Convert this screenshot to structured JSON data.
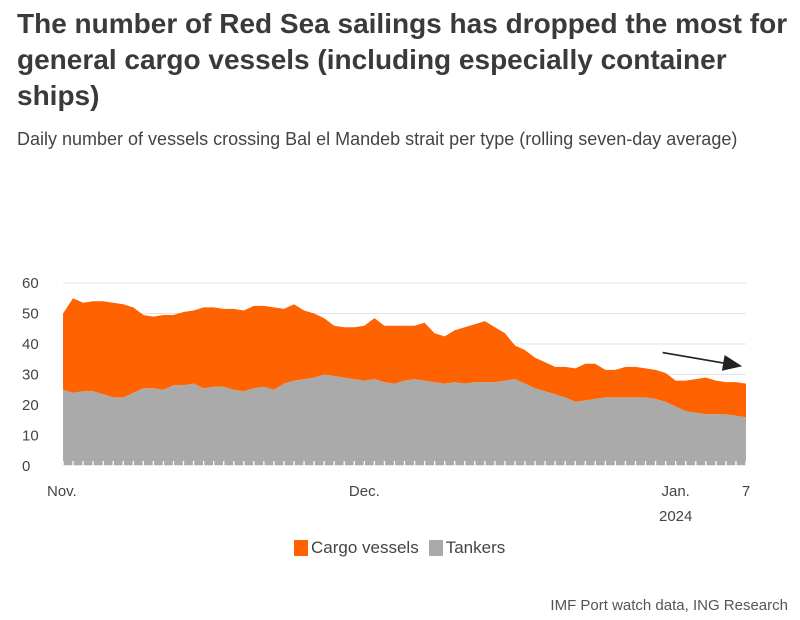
{
  "title": "The number of Red Sea sailings has dropped the most for general cargo vessels (including especially container ships)",
  "subtitle": "Daily number of vessels crossing Bal el Mandeb strait per type (rolling seven-day average)",
  "source": "IMF Port watch data, ING Research",
  "chart_data": {
    "type": "area",
    "stacked": true,
    "ylim": [
      0,
      60
    ],
    "yticks": [
      0,
      10,
      20,
      30,
      40,
      50,
      60
    ],
    "xlim": [
      0,
      68
    ],
    "xticks": [
      {
        "pos": 0,
        "label": "Nov."
      },
      {
        "pos": 30,
        "label": "Dec."
      },
      {
        "pos": 61,
        "label": "Jan.",
        "sublabel": "2024"
      },
      {
        "pos": 68,
        "label": "7"
      }
    ],
    "legend_position": "bottom",
    "series": [
      {
        "name": "Tankers",
        "color": "#aaaaaa",
        "values": [
          25,
          24,
          24.5,
          24.5,
          23.5,
          22.5,
          22.5,
          24,
          25.5,
          25.5,
          25,
          26.5,
          26.5,
          27,
          25.5,
          26,
          26,
          25,
          24.5,
          25.5,
          26,
          25,
          27,
          28,
          28.5,
          29,
          30,
          29.5,
          29,
          28.5,
          28,
          28.5,
          27.5,
          27,
          28,
          28.5,
          28,
          27.5,
          27,
          27.5,
          27,
          27.5,
          27.5,
          27.5,
          28,
          28.5,
          27,
          25.5,
          24.5,
          23.5,
          22.5,
          21,
          21.5,
          22,
          22.5,
          22.5,
          22.5,
          22.5,
          22.5,
          22,
          21,
          19.5,
          18,
          17.5,
          17,
          17,
          17,
          16.5,
          16
        ]
      },
      {
        "name": "Cargo vessels",
        "color": "#ff6200",
        "values": [
          25,
          31,
          29,
          29.5,
          30.5,
          31,
          30.5,
          28,
          24,
          23.5,
          24.5,
          23,
          24,
          24,
          26.5,
          26,
          25.5,
          26.5,
          26.5,
          27,
          26.5,
          27,
          24.5,
          25,
          22.5,
          21,
          18.5,
          16.5,
          16.5,
          17,
          18,
          20,
          18.5,
          19,
          18,
          17.5,
          19,
          16,
          15.5,
          17,
          18.5,
          19,
          20,
          18,
          15.5,
          11,
          11,
          10,
          9.5,
          9,
          10,
          11,
          12,
          11.5,
          9,
          9,
          10,
          10,
          9.5,
          9.5,
          9.5,
          8.5,
          10,
          11,
          12,
          11,
          10.5,
          11,
          11
        ]
      }
    ],
    "annotation": "downward trend arrow"
  }
}
